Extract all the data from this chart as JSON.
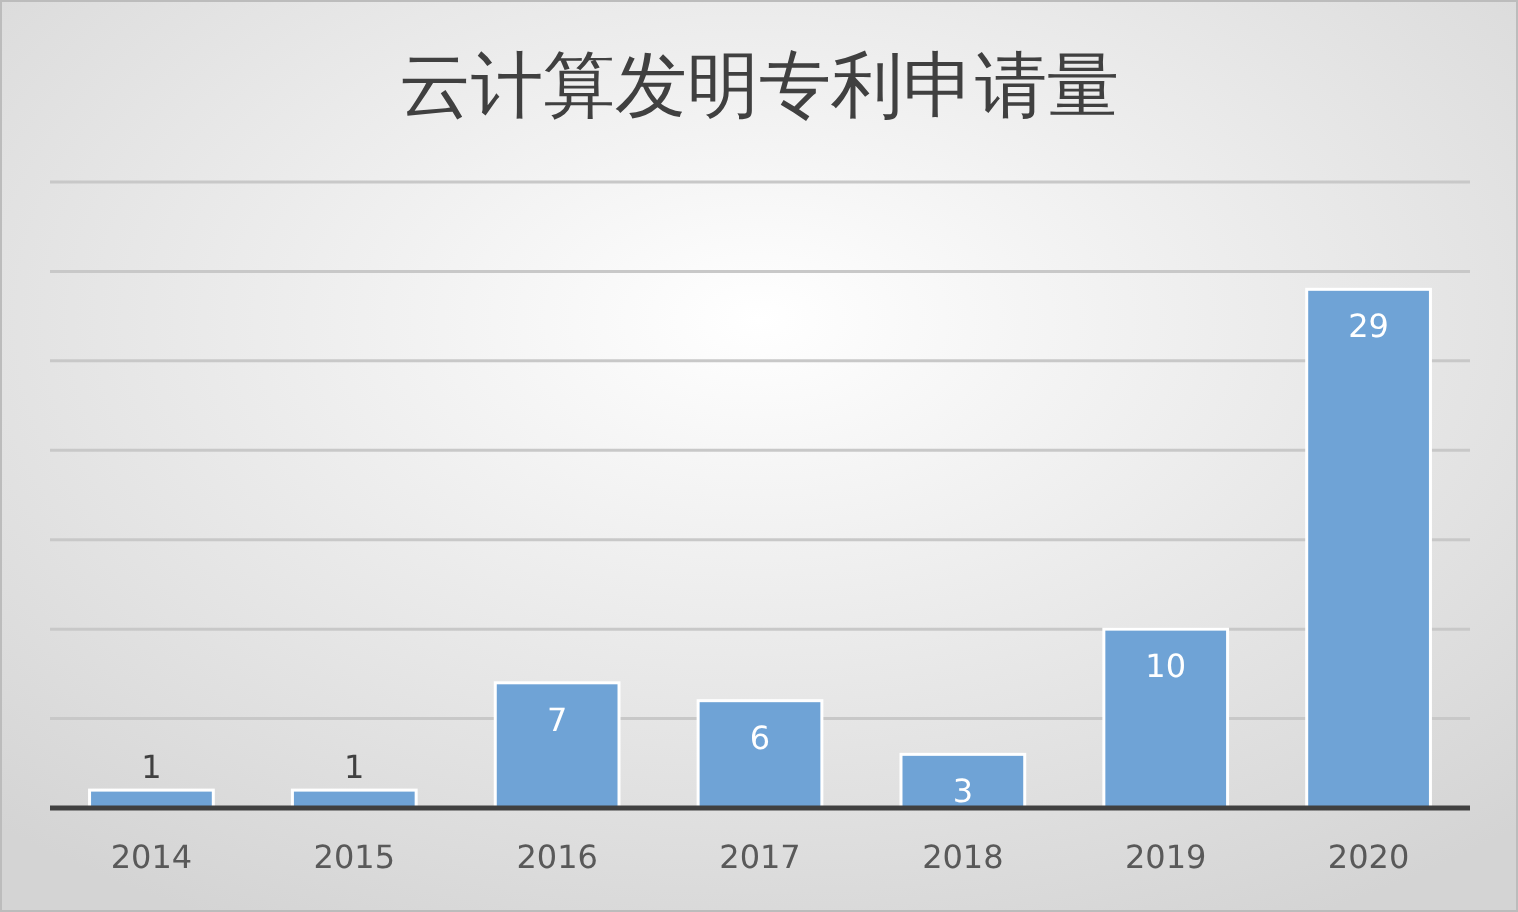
{
  "chart_data": {
    "type": "bar",
    "title": "云计算发明专利申请量",
    "categories": [
      "2014",
      "2015",
      "2016",
      "2017",
      "2018",
      "2019",
      "2020"
    ],
    "values": [
      1,
      1,
      7,
      6,
      3,
      10,
      29
    ],
    "color": "#6fa3d6",
    "ylim": [
      0,
      35
    ],
    "yticks": [
      {
        "value": 0,
        "label": null
      },
      {
        "value": 5,
        "label": null
      },
      {
        "value": 10,
        "label": null
      },
      {
        "value": 15,
        "label": null
      },
      {
        "value": 20,
        "label": null
      },
      {
        "value": 25,
        "label": null
      },
      {
        "value": 30,
        "label": null
      },
      {
        "value": 35,
        "label": null
      }
    ],
    "grid": "y",
    "tick_labels": "x",
    "data_labels": true
  }
}
